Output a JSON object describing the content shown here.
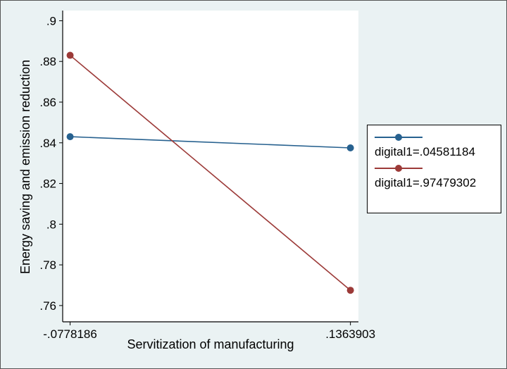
{
  "figure": {
    "background": "#EAF2F3",
    "plot_background": "#FFFFFF",
    "axis_color": "#000000",
    "outer_border_color": "#555555"
  },
  "chart_data": {
    "type": "line",
    "title": "",
    "xlabel": "Servitization of manufacturing",
    "ylabel": "Energy saving and emission reduction",
    "x": [
      -0.0778186,
      0.1363903
    ],
    "series": [
      {
        "name": "digital1=.04581184",
        "values": [
          0.843,
          0.8375
        ],
        "color": "#27618F",
        "marker": "circle"
      },
      {
        "name": "digital1=.97479302",
        "values": [
          0.883,
          0.7675
        ],
        "color": "#9C3A38",
        "marker": "circle"
      }
    ],
    "xticks": [
      {
        "value": -0.0778186,
        "label": "-.0778186"
      },
      {
        "value": 0.1363903,
        "label": ".1363903"
      }
    ],
    "yticks": [
      {
        "value": 0.76,
        "label": ".76"
      },
      {
        "value": 0.78,
        "label": ".78"
      },
      {
        "value": 0.8,
        "label": ".8"
      },
      {
        "value": 0.82,
        "label": ".82"
      },
      {
        "value": 0.84,
        "label": ".84"
      },
      {
        "value": 0.86,
        "label": ".86"
      },
      {
        "value": 0.88,
        "label": ".88"
      },
      {
        "value": 0.9,
        "label": ".9"
      }
    ],
    "xlim": [
      -0.0835,
      0.1425
    ],
    "ylim": [
      0.752,
      0.905
    ],
    "grid": false,
    "legend_position": "right-outside"
  }
}
